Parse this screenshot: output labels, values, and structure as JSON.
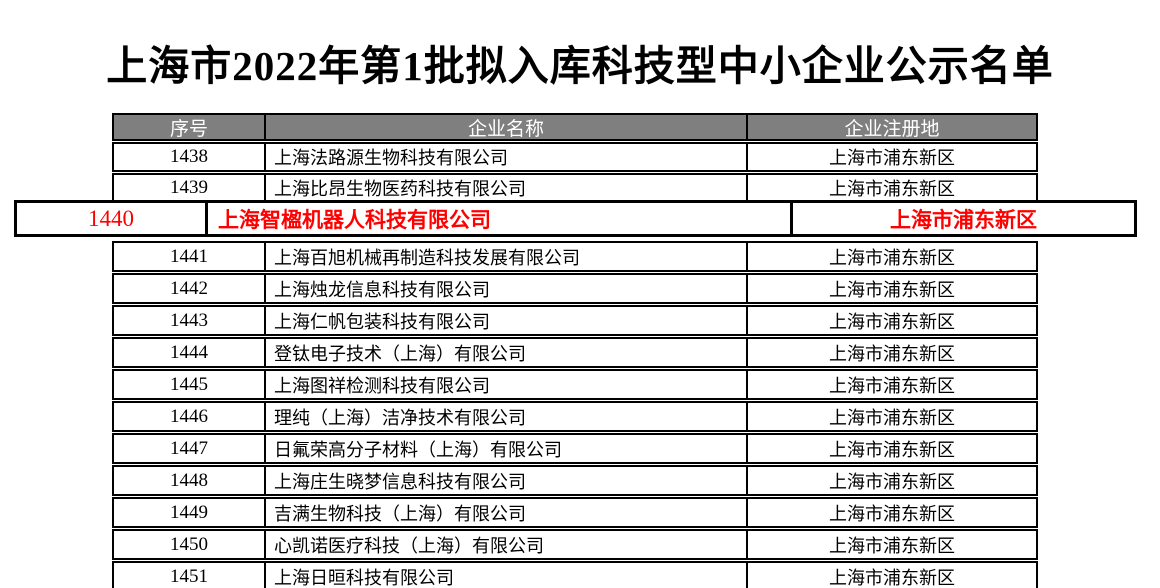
{
  "title": "上海市2022年第1批拟入库科技型中小企业公示名单",
  "table": {
    "columns": [
      "序号",
      "企业名称",
      "企业注册地"
    ],
    "rows": [
      {
        "no": "1438",
        "name": "上海法路源生物科技有限公司",
        "location": "上海市浦东新区",
        "highlighted": false
      },
      {
        "no": "1439",
        "name": "上海比昂生物医药科技有限公司",
        "location": "上海市浦东新区",
        "highlighted": false
      },
      {
        "no": "1440",
        "name": "上海智楹机器人科技有限公司",
        "location": "上海市浦东新区",
        "highlighted": true
      },
      {
        "no": "1441",
        "name": "上海百旭机械再制造科技发展有限公司",
        "location": "上海市浦东新区",
        "highlighted": false
      },
      {
        "no": "1442",
        "name": "上海烛龙信息科技有限公司",
        "location": "上海市浦东新区",
        "highlighted": false
      },
      {
        "no": "1443",
        "name": "上海仁帆包装科技有限公司",
        "location": "上海市浦东新区",
        "highlighted": false
      },
      {
        "no": "1444",
        "name": "登钛电子技术（上海）有限公司",
        "location": "上海市浦东新区",
        "highlighted": false
      },
      {
        "no": "1445",
        "name": "上海图祥检测科技有限公司",
        "location": "上海市浦东新区",
        "highlighted": false
      },
      {
        "no": "1446",
        "name": "理纯（上海）洁净技术有限公司",
        "location": "上海市浦东新区",
        "highlighted": false
      },
      {
        "no": "1447",
        "name": "日氟荣高分子材料（上海）有限公司",
        "location": "上海市浦东新区",
        "highlighted": false
      },
      {
        "no": "1448",
        "name": "上海庄生晓梦信息科技有限公司",
        "location": "上海市浦东新区",
        "highlighted": false
      },
      {
        "no": "1449",
        "name": "吉满生物科技（上海）有限公司",
        "location": "上海市浦东新区",
        "highlighted": false
      },
      {
        "no": "1450",
        "name": "心凯诺医疗科技（上海）有限公司",
        "location": "上海市浦东新区",
        "highlighted": false
      },
      {
        "no": "1451",
        "name": "上海日晅科技有限公司",
        "location": "上海市浦东新区",
        "highlighted": false
      }
    ]
  },
  "colors": {
    "header_bg": "#7f7f7f",
    "header_text": "#ffffff",
    "highlight_text": "#ff0000",
    "border": "#000000",
    "page_bg": "#ffffff"
  }
}
